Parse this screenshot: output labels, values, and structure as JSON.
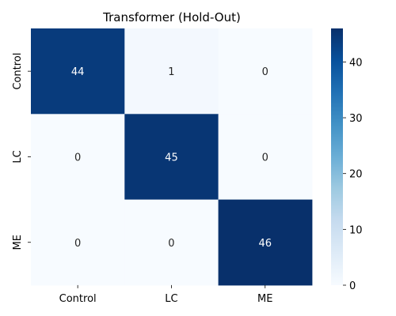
{
  "chart_data": {
    "type": "heatmap",
    "title": "Transformer (Hold-Out)",
    "x_categories": [
      "Control",
      "LC",
      "ME"
    ],
    "y_categories": [
      "Control",
      "LC",
      "ME"
    ],
    "values": [
      [
        44,
        1,
        0
      ],
      [
        0,
        45,
        0
      ],
      [
        0,
        0,
        46
      ]
    ],
    "colormap": "Blues",
    "color_range": [
      0,
      46
    ],
    "colorbar_ticks": [
      0,
      10,
      20,
      30,
      40
    ],
    "annotate_cells": true,
    "grid": false
  }
}
